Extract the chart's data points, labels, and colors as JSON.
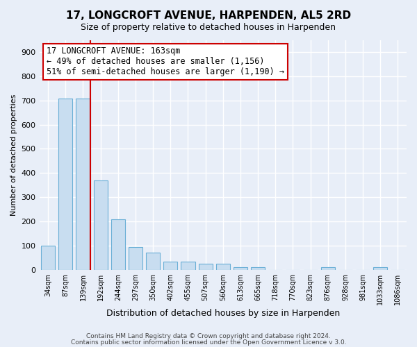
{
  "title": "17, LONGCROFT AVENUE, HARPENDEN, AL5 2RD",
  "subtitle": "Size of property relative to detached houses in Harpenden",
  "xlabel": "Distribution of detached houses by size in Harpenden",
  "ylabel": "Number of detached properties",
  "bin_labels": [
    "34sqm",
    "87sqm",
    "139sqm",
    "192sqm",
    "244sqm",
    "297sqm",
    "350sqm",
    "402sqm",
    "455sqm",
    "507sqm",
    "560sqm",
    "613sqm",
    "665sqm",
    "718sqm",
    "770sqm",
    "823sqm",
    "876sqm",
    "928sqm",
    "981sqm",
    "1033sqm",
    "1086sqm"
  ],
  "bar_heights": [
    100,
    707,
    707,
    370,
    208,
    95,
    72,
    35,
    35,
    25,
    25,
    10,
    10,
    0,
    0,
    0,
    10,
    0,
    0,
    10,
    0
  ],
  "bar_color": "#c8ddf0",
  "bar_edgecolor": "#6aafd6",
  "vline_color": "#cc0000",
  "annotation_text": "17 LONGCROFT AVENUE: 163sqm\n← 49% of detached houses are smaller (1,156)\n51% of semi-detached houses are larger (1,190) →",
  "annotation_box_facecolor": "#ffffff",
  "annotation_box_edgecolor": "#cc0000",
  "ylim": [
    0,
    950
  ],
  "yticks": [
    0,
    100,
    200,
    300,
    400,
    500,
    600,
    700,
    800,
    900
  ],
  "footer_line1": "Contains HM Land Registry data © Crown copyright and database right 2024.",
  "footer_line2": "Contains public sector information licensed under the Open Government Licence v 3.0.",
  "bg_color": "#e8eef8",
  "plot_bg_color": "#e8eef8",
  "grid_color": "#ffffff",
  "title_fontsize": 11,
  "subtitle_fontsize": 9,
  "xlabel_fontsize": 9,
  "ylabel_fontsize": 8,
  "tick_fontsize": 8,
  "xtick_fontsize": 7,
  "annotation_fontsize": 8.5,
  "footer_fontsize": 6.5
}
